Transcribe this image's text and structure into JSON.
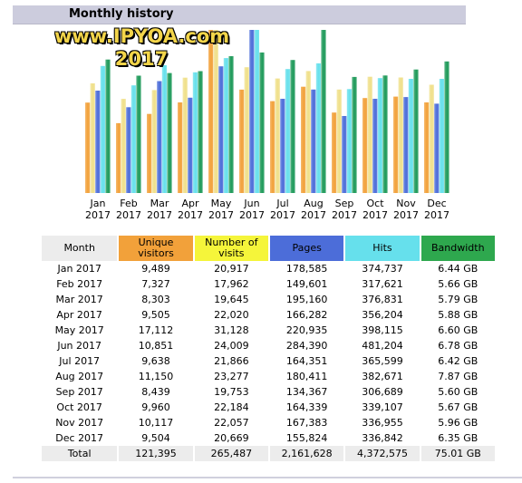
{
  "header": {
    "title": "Monthly history"
  },
  "watermark": {
    "line1": "www.IPYOA.com",
    "line2": "2017"
  },
  "colors": {
    "unique_visitors": "#f2a13a",
    "number_of_visits": "#f0e08a",
    "pages": "#4c6dd9",
    "hits": "#66e0ec",
    "bandwidth": "#1f9a5a"
  },
  "chart_data": {
    "type": "bar",
    "categories": [
      "Jan 2017",
      "Feb 2017",
      "Mar 2017",
      "Apr 2017",
      "May 2017",
      "Jun 2017",
      "Jul 2017",
      "Aug 2017",
      "Sep 2017",
      "Oct 2017",
      "Nov 2017",
      "Dec 2017"
    ],
    "category_lines": [
      [
        "Jan",
        "2017"
      ],
      [
        "Feb",
        "2017"
      ],
      [
        "Mar",
        "2017"
      ],
      [
        "Apr",
        "2017"
      ],
      [
        "May",
        "2017"
      ],
      [
        "Jun",
        "2017"
      ],
      [
        "Jul",
        "2017"
      ],
      [
        "Aug",
        "2017"
      ],
      [
        "Sep",
        "2017"
      ],
      [
        "Oct",
        "2017"
      ],
      [
        "Nov",
        "2017"
      ],
      [
        "Dec",
        "2017"
      ]
    ],
    "series": [
      {
        "key": "unique_visitors",
        "values": [
          9489,
          7327,
          8303,
          9505,
          17112,
          10851,
          9638,
          11150,
          8439,
          9960,
          10117,
          9504
        ]
      },
      {
        "key": "number_of_visits",
        "values": [
          20917,
          17962,
          19645,
          22020,
          31128,
          24009,
          21866,
          23277,
          19753,
          22184,
          22057,
          20669
        ]
      },
      {
        "key": "pages",
        "values": [
          178585,
          149601,
          195160,
          166282,
          220935,
          284390,
          164351,
          180411,
          134367,
          164339,
          167383,
          155824
        ]
      },
      {
        "key": "hits",
        "values": [
          374737,
          317621,
          376831,
          356204,
          398115,
          481204,
          365599,
          382671,
          306689,
          339107,
          336955,
          336842
        ]
      },
      {
        "key": "bandwidth_gb",
        "values": [
          6.44,
          5.66,
          5.79,
          5.88,
          6.6,
          6.78,
          6.42,
          7.87,
          5.6,
          5.67,
          5.96,
          6.35
        ]
      }
    ]
  },
  "table": {
    "headers": {
      "month": "Month",
      "unique_visitors": "Unique visitors",
      "number_of_visits": "Number of visits",
      "pages": "Pages",
      "hits": "Hits",
      "bandwidth": "Bandwidth"
    },
    "rows": [
      [
        "Jan 2017",
        "9,489",
        "20,917",
        "178,585",
        "374,737",
        "6.44 GB"
      ],
      [
        "Feb 2017",
        "7,327",
        "17,962",
        "149,601",
        "317,621",
        "5.66 GB"
      ],
      [
        "Mar 2017",
        "8,303",
        "19,645",
        "195,160",
        "376,831",
        "5.79 GB"
      ],
      [
        "Apr 2017",
        "9,505",
        "22,020",
        "166,282",
        "356,204",
        "5.88 GB"
      ],
      [
        "May 2017",
        "17,112",
        "31,128",
        "220,935",
        "398,115",
        "6.60 GB"
      ],
      [
        "Jun 2017",
        "10,851",
        "24,009",
        "284,390",
        "481,204",
        "6.78 GB"
      ],
      [
        "Jul 2017",
        "9,638",
        "21,866",
        "164,351",
        "365,599",
        "6.42 GB"
      ],
      [
        "Aug 2017",
        "11,150",
        "23,277",
        "180,411",
        "382,671",
        "7.87 GB"
      ],
      [
        "Sep 2017",
        "8,439",
        "19,753",
        "134,367",
        "306,689",
        "5.60 GB"
      ],
      [
        "Oct 2017",
        "9,960",
        "22,184",
        "164,339",
        "339,107",
        "5.67 GB"
      ],
      [
        "Nov 2017",
        "10,117",
        "22,057",
        "167,383",
        "336,955",
        "5.96 GB"
      ],
      [
        "Dec 2017",
        "9,504",
        "20,669",
        "155,824",
        "336,842",
        "6.35 GB"
      ]
    ],
    "total": [
      "Total",
      "121,395",
      "265,487",
      "2,161,628",
      "4,372,575",
      "75.01 GB"
    ]
  }
}
